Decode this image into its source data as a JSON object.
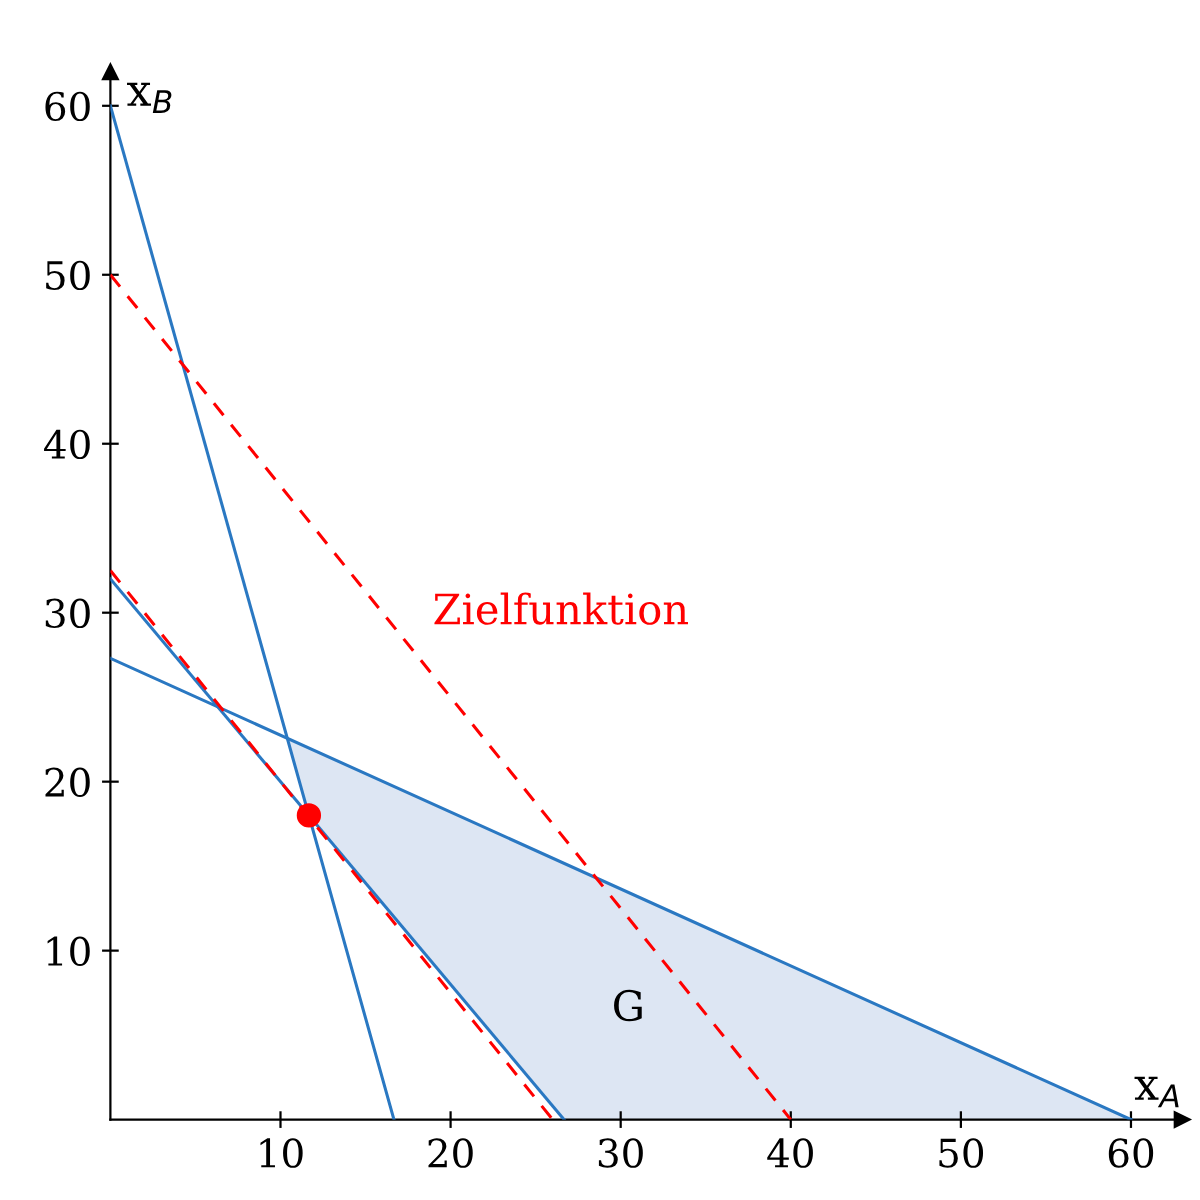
{
  "chart_data": {
    "type": "line",
    "xlabel": "x$_{A}$",
    "ylabel": "x$_{B}$",
    "xlim": [
      0,
      63
    ],
    "ylim": [
      0,
      62
    ],
    "xticks": [
      10,
      20,
      30,
      40,
      50,
      60
    ],
    "yticks": [
      10,
      20,
      30,
      40,
      50,
      60
    ],
    "series": [
      {
        "type": "area",
        "color": "#dde6f3",
        "x": [
          10.4,
          60,
          26.67,
          11.67
        ],
        "values": [
          22.6,
          0,
          0,
          18
        ]
      },
      {
        "color": "#2a78c2",
        "x": [
          0,
          16.67
        ],
        "values": [
          60,
          0
        ]
      },
      {
        "color": "#2a78c2",
        "x": [
          0,
          60
        ],
        "values": [
          27.3,
          0
        ]
      },
      {
        "color": "#2a78c2",
        "x": [
          0,
          26.67
        ],
        "values": [
          32,
          0
        ]
      },
      {
        "color": "#ff0000",
        "line_style": "dashed",
        "x": [
          0,
          26
        ],
        "values": [
          32.5,
          0
        ]
      },
      {
        "name": "Zielfunktion",
        "color": "#ff0000",
        "line_style": "dashed",
        "x": [
          0,
          40
        ],
        "values": [
          50,
          0
        ]
      },
      {
        "type": "scatter",
        "color": "#ff0000",
        "marker": "circle",
        "x": [
          11.67
        ],
        "values": [
          18
        ]
      }
    ],
    "annotations": [
      "G"
    ]
  }
}
